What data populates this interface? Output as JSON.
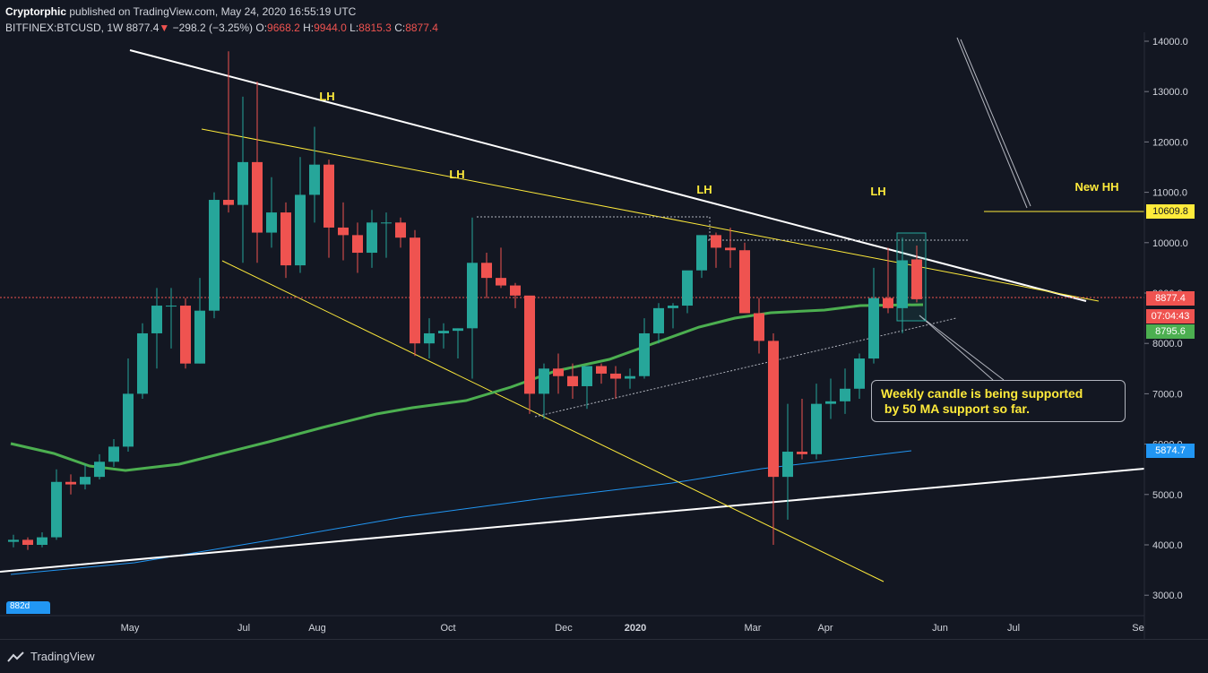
{
  "header": {
    "author": "Cryptorphic",
    "published": "published on TradingView.com, May 24, 2020 16:55:19 UTC",
    "symbol": "BITFINEX:BTCUSD, 1W",
    "last": "8877.4",
    "change": "−298.2 (−3.25%)",
    "o_label": "O:",
    "o_val": "9668.2",
    "h_label": "H:",
    "h_val": "9944.0",
    "l_label": "L:",
    "l_val": "8815.3",
    "c_label": "C:",
    "c_val": "8877.4"
  },
  "footer": {
    "brand": "TradingView"
  },
  "range_badge": "882d",
  "annotation": "Weekly candle is being supported\n by 50 MA support so far.",
  "price_tags": {
    "target": "10609.8",
    "last": "8877.4",
    "countdown": "07:04:43",
    "ma50": "8795.6",
    "ma200": "5874.7"
  },
  "colors": {
    "background": "#131722",
    "up": "#26a69a",
    "down": "#ef5350",
    "ma50": "#4caf50",
    "ma200": "#2196f3",
    "trendline_yellow": "#ffeb3b",
    "trendline_white": "#ffffff"
  },
  "chart_data": {
    "type": "candlestick",
    "yaxis_ticks": [
      "14000.0",
      "13000.0",
      "12000.0",
      "11000.0",
      "10000.0",
      "9000.0",
      "8000.0",
      "7000.0",
      "6000.0",
      "5000.0",
      "4000.0",
      "3000.0"
    ],
    "xaxis_ticks": [
      "May",
      "Jul",
      "Aug",
      "Oct",
      "Dec",
      "2020",
      "Mar",
      "Apr",
      "Jun",
      "Jul",
      "Se"
    ],
    "ylim": [
      2600,
      14100
    ],
    "labels": [
      "LH",
      "LH",
      "LH",
      "LH",
      "New HH"
    ],
    "candles_ohlc": [
      [
        4060,
        4200,
        3950,
        4100
      ],
      [
        4100,
        4150,
        3900,
        4000
      ],
      [
        4000,
        4250,
        3950,
        4150
      ],
      [
        4150,
        5500,
        4100,
        5250
      ],
      [
        5250,
        5400,
        5000,
        5200
      ],
      [
        5200,
        5600,
        5100,
        5350
      ],
      [
        5350,
        5800,
        5300,
        5650
      ],
      [
        5650,
        6100,
        5550,
        5950
      ],
      [
        5950,
        7700,
        5850,
        7000
      ],
      [
        7000,
        8400,
        6900,
        8200
      ],
      [
        8200,
        9100,
        7500,
        8750
      ],
      [
        8750,
        9100,
        7900,
        8750
      ],
      [
        8750,
        8900,
        7500,
        7600
      ],
      [
        7600,
        9300,
        7600,
        8650
      ],
      [
        8650,
        11000,
        8500,
        10850
      ],
      [
        10850,
        13800,
        10600,
        10750
      ],
      [
        10750,
        12900,
        9600,
        11600
      ],
      [
        11600,
        13200,
        9600,
        10200
      ],
      [
        10200,
        11300,
        9900,
        10600
      ],
      [
        10600,
        10800,
        9300,
        9550
      ],
      [
        9550,
        11700,
        9400,
        10950
      ],
      [
        10950,
        12300,
        10400,
        11550
      ],
      [
        11550,
        11650,
        9700,
        10300
      ],
      [
        10300,
        10800,
        9650,
        10150
      ],
      [
        10150,
        10400,
        9400,
        9800
      ],
      [
        9800,
        10650,
        9500,
        10400
      ],
      [
        10400,
        10600,
        9700,
        10400
      ],
      [
        10400,
        10500,
        9900,
        10100
      ],
      [
        10100,
        10250,
        7750,
        8000
      ],
      [
        8000,
        8500,
        7700,
        8200
      ],
      [
        8200,
        8400,
        7900,
        8250
      ],
      [
        8250,
        8300,
        7700,
        8300
      ],
      [
        8300,
        10500,
        7300,
        9600
      ],
      [
        9600,
        9800,
        8900,
        9300
      ],
      [
        9300,
        9900,
        9100,
        9150
      ],
      [
        9150,
        9200,
        8700,
        8950
      ],
      [
        8950,
        8900,
        6600,
        7000
      ],
      [
        7000,
        7600,
        6500,
        7500
      ],
      [
        7500,
        7800,
        7000,
        7350
      ],
      [
        7350,
        7600,
        6900,
        7150
      ],
      [
        7150,
        7500,
        6700,
        7550
      ],
      [
        7550,
        7600,
        7200,
        7400
      ],
      [
        7400,
        7550,
        6900,
        7300
      ],
      [
        7300,
        7500,
        7100,
        7350
      ],
      [
        7350,
        8500,
        7300,
        8200
      ],
      [
        8200,
        8800,
        8000,
        8700
      ],
      [
        8700,
        8800,
        8300,
        8750
      ],
      [
        8750,
        9300,
        8600,
        9450
      ],
      [
        9450,
        10000,
        9300,
        10150
      ],
      [
        10150,
        10200,
        9500,
        9900
      ],
      [
        9900,
        10300,
        9500,
        9850
      ],
      [
        9850,
        10000,
        8800,
        8600
      ],
      [
        8600,
        8900,
        7800,
        8050
      ],
      [
        8050,
        8200,
        4000,
        5350
      ],
      [
        5350,
        6800,
        4500,
        5850
      ],
      [
        5850,
        6900,
        5700,
        5800
      ],
      [
        5800,
        7200,
        5700,
        6800
      ],
      [
        6800,
        7300,
        6500,
        6850
      ],
      [
        6850,
        7500,
        6600,
        7100
      ],
      [
        7100,
        7800,
        6900,
        7700
      ],
      [
        7700,
        9500,
        7600,
        8900
      ],
      [
        8900,
        9900,
        8600,
        8700
      ],
      [
        8700,
        10100,
        8200,
        9650
      ],
      [
        9668.2,
        9944,
        8815.3,
        8877.4
      ]
    ]
  }
}
